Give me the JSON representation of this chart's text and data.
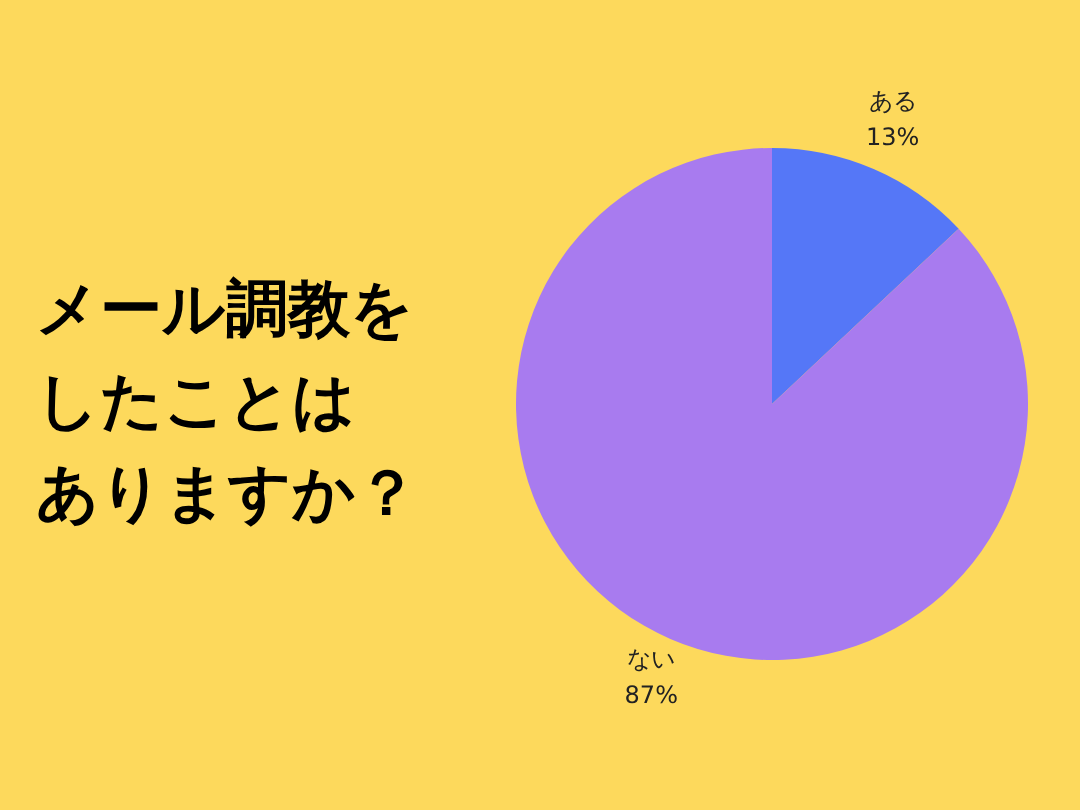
{
  "chart_data": {
    "type": "pie",
    "title": "メール調教をしたことはありますか？",
    "categories": [
      "ある",
      "ない"
    ],
    "values": [
      13,
      87
    ],
    "colors": [
      "#5577f7",
      "#a87bef"
    ],
    "value_labels": [
      "13%",
      "87%"
    ]
  }
}
